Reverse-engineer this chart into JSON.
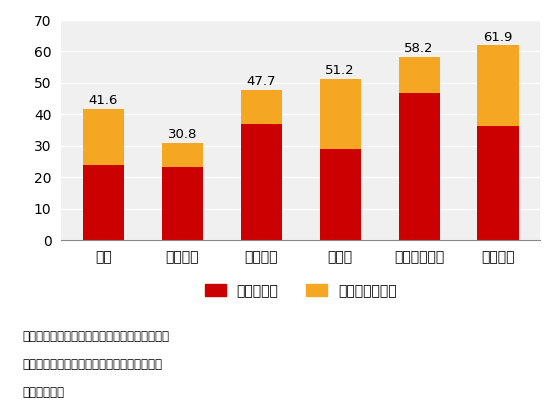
{
  "categories": [
    "日本",
    "アメリカ",
    "イギリス",
    "ドイツ",
    "スウェーデン",
    "フランス"
  ],
  "tax_values": [
    24.0,
    23.2,
    36.8,
    29.0,
    46.8,
    36.2
  ],
  "social_values": [
    17.6,
    7.6,
    10.9,
    22.2,
    11.4,
    25.7
  ],
  "totals": [
    41.6,
    30.8,
    47.7,
    51.2,
    58.2,
    61.9
  ],
  "tax_color": "#cc0000",
  "social_color": "#f5a623",
  "background_color": "#f0f0f0",
  "ylim": [
    0,
    70
  ],
  "yticks": [
    0,
    10,
    20,
    30,
    40,
    50,
    60,
    70
  ],
  "legend_tax": "租税負担率",
  "legend_social": "社会保障負担率",
  "note_line1": "注：租税負担率＝（国税＋地方税）／国民所得",
  "note_line2": "　　社会保障負担率＝社会保険料／国民所得",
  "source": "出典：国税庁",
  "note_fontsize": 8.5,
  "tick_fontsize": 10,
  "label_fontsize": 9.5,
  "legend_fontsize": 10
}
